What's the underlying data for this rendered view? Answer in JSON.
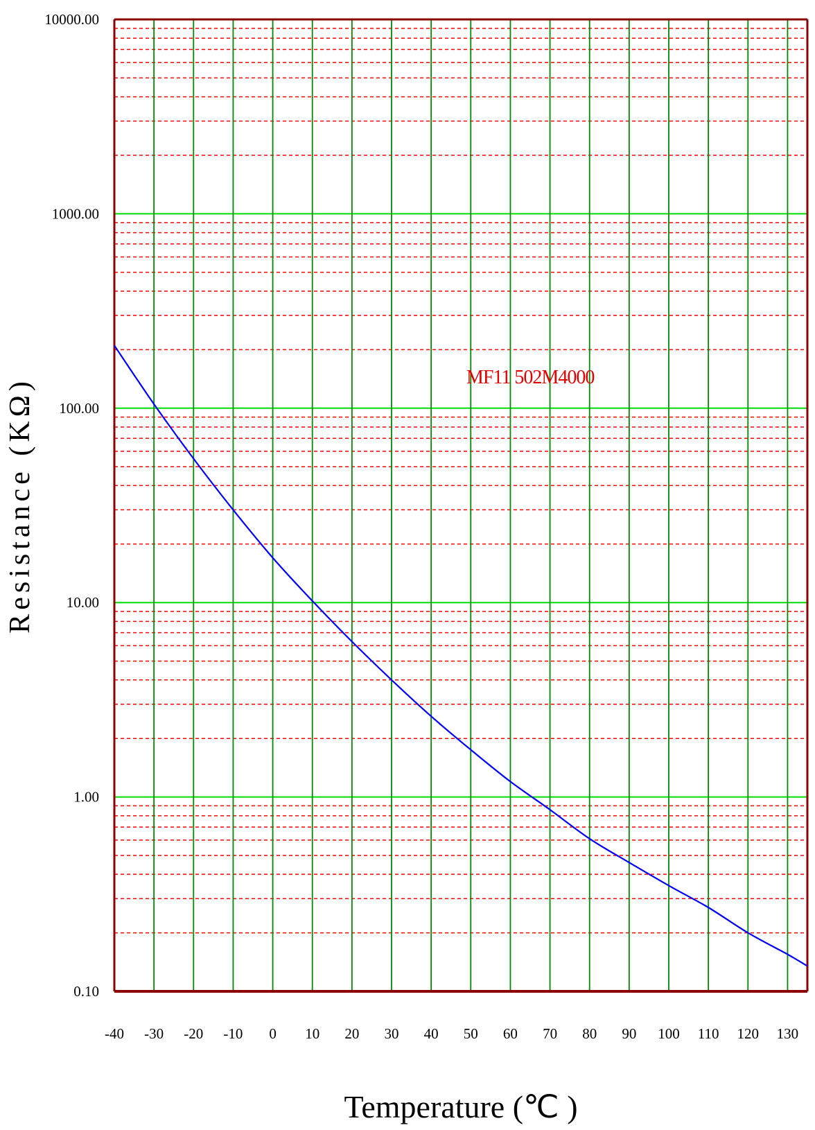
{
  "chart_data": {
    "type": "line",
    "title": "",
    "xlabel": "Temperature (℃ )",
    "ylabel": "Resistance (KΩ)",
    "xlim": [
      -40,
      135
    ],
    "ylim": [
      0.1,
      10000
    ],
    "y_scale": "log",
    "x_ticks": [
      "-40",
      "-30",
      "-20",
      "-10",
      "0",
      "10",
      "20",
      "30",
      "40",
      "50",
      "60",
      "70",
      "80",
      "90",
      "100",
      "110",
      "120",
      "130"
    ],
    "y_ticks": [
      "10000.00",
      "1000.00",
      "100.00",
      "10.00",
      "1.00",
      "0.10"
    ],
    "grid": true,
    "annotation": "MF11 502M4000",
    "series": [
      {
        "x": [
          -40,
          -30,
          -20,
          -10,
          0,
          10,
          20,
          30,
          40,
          50,
          60,
          70,
          80,
          90,
          100,
          110,
          120,
          130,
          135
        ],
        "y": [
          210,
          105,
          55,
          30,
          17,
          10.2,
          6.3,
          4.0,
          2.6,
          1.75,
          1.2,
          0.86,
          0.61,
          0.46,
          0.35,
          0.27,
          0.2,
          0.155,
          0.135
        ]
      }
    ],
    "colors": {
      "curve": "#0000ff",
      "major_grid": "#00dd00",
      "vertical_grid": "#008800",
      "minor_grid": "#ff0000",
      "frame": "#8b0000",
      "annotation": "#e00000"
    }
  }
}
